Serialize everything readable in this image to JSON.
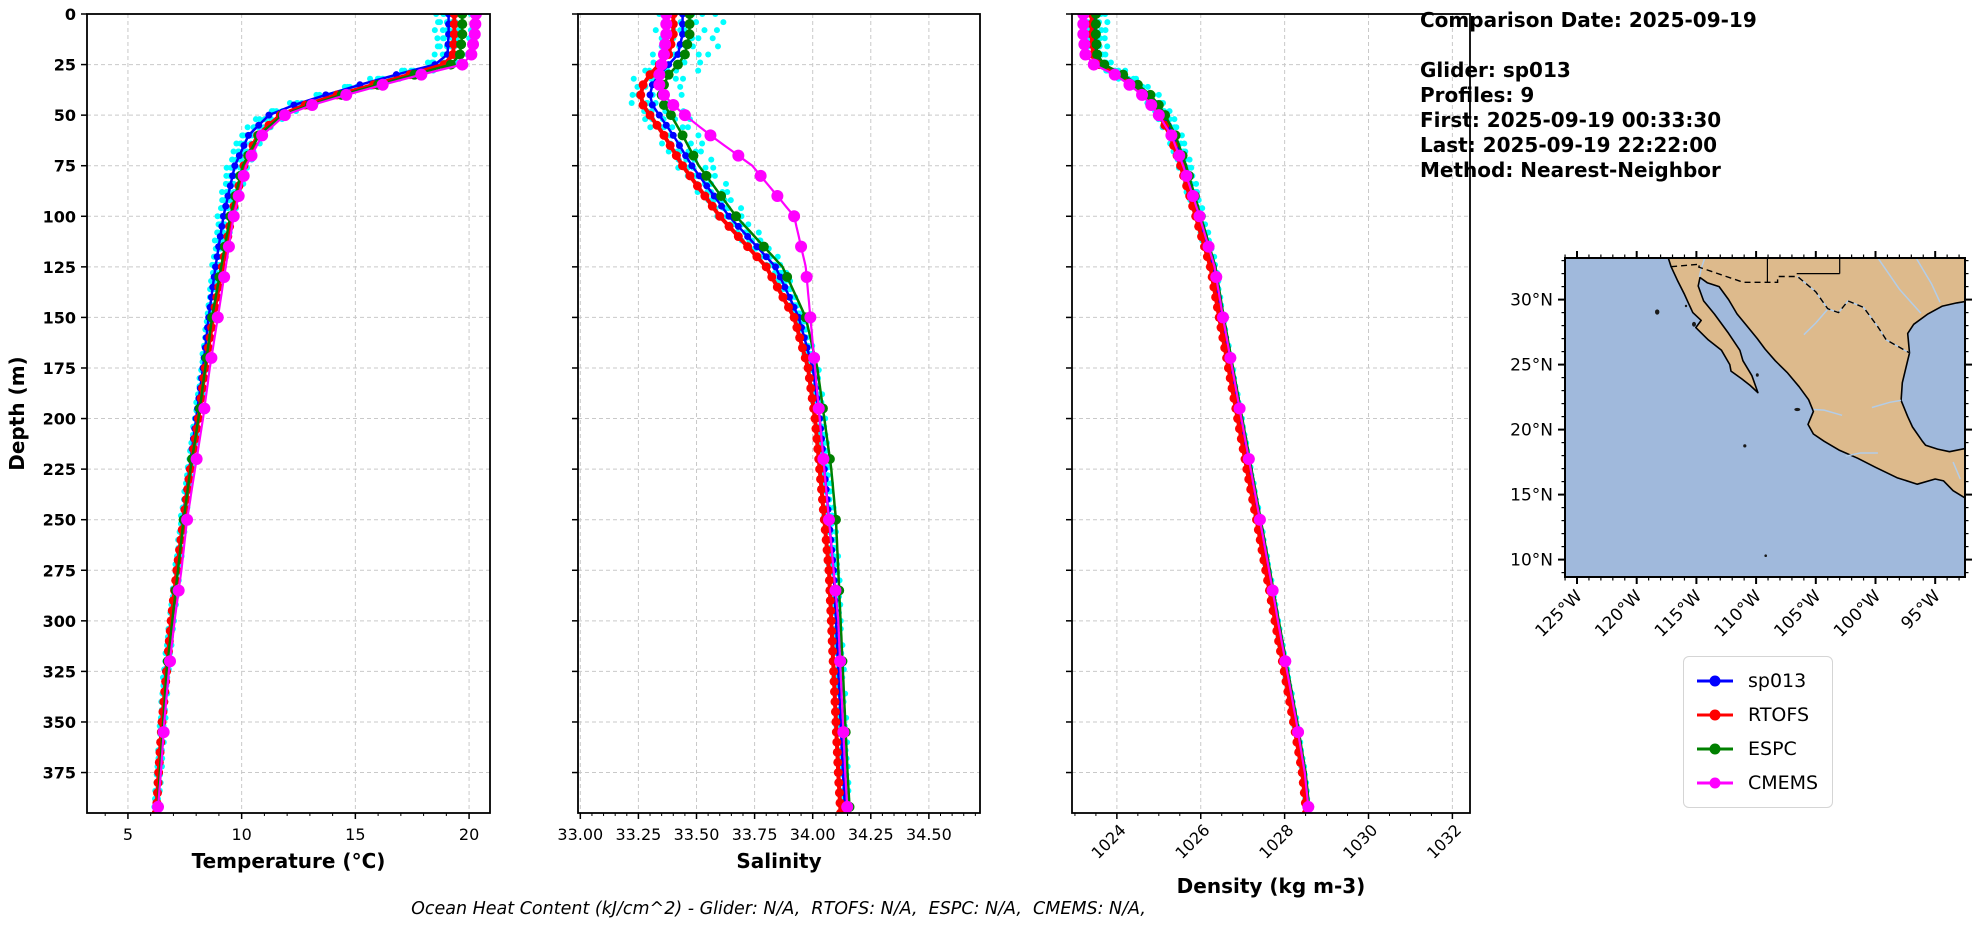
{
  "info_panel": {
    "comparison_date": "Comparison Date: 2025-09-19",
    "glider": "Glider: sp013",
    "profiles": "Profiles: 9",
    "first": "First: 2025-09-19 00:33:30",
    "last": "Last: 2025-09-19 22:22:00",
    "method": "Method: Nearest-Neighbor"
  },
  "footer": {
    "ohc_text": "Ocean Heat Content (kJ/cm^2) - Glider: N/A,  RTOFS: N/A,  ESPC: N/A,  CMEMS: N/A,"
  },
  "legend": {
    "items": [
      {
        "label": "sp013",
        "color": "#0000ff"
      },
      {
        "label": "RTOFS",
        "color": "#ff0000"
      },
      {
        "label": "ESPC",
        "color": "#008000"
      },
      {
        "label": "CMEMS",
        "color": "#ff00ff"
      }
    ]
  },
  "map": {
    "ocean_color": "#a0b9dc",
    "land_color": "#ddba8c",
    "river_color": "#b3cde8",
    "lat_labels": [
      "30°N",
      "25°N",
      "20°N",
      "15°N",
      "10°N"
    ],
    "lat_values": [
      30,
      25,
      20,
      15,
      10
    ],
    "lon_labels": [
      "125°W",
      "120°W",
      "115°W",
      "110°W",
      "105°W",
      "100°W",
      "95°W"
    ],
    "lon_values": [
      -125,
      -120,
      -115,
      -110,
      -105,
      -100,
      -95
    ]
  },
  "chart_data": [
    {
      "type": "line",
      "xlabel": "Temperature (°C)",
      "ylabel": "Depth (m)",
      "xlim": [
        3.2,
        20.92
      ],
      "ylim": [
        0,
        395
      ],
      "xticks": [
        5,
        10,
        15,
        20
      ],
      "xtick_labels": [
        "5",
        "10",
        "15",
        "20"
      ],
      "xminor_step": 1,
      "yticks": [
        0,
        25,
        50,
        75,
        100,
        125,
        150,
        175,
        200,
        225,
        250,
        275,
        300,
        325,
        350,
        375
      ],
      "xtick_rotation": 0,
      "depth_anchors": [
        0,
        10,
        20,
        25,
        30,
        35,
        40,
        45,
        50,
        60,
        75,
        100,
        125,
        150,
        175,
        200,
        225,
        250,
        275,
        300,
        325,
        350,
        375,
        395
      ],
      "series": [
        {
          "name": "sp013",
          "color": "#0000ff",
          "line_width": 2.5,
          "marker_radius": 3.5,
          "marker_step": 5,
          "values": [
            19.1,
            19.1,
            19.05,
            18.5,
            16.8,
            15.2,
            13.7,
            12.3,
            11.2,
            10.3,
            9.7,
            9.2,
            8.85,
            8.55,
            8.3,
            8.0,
            7.7,
            7.4,
            7.15,
            6.9,
            6.65,
            6.5,
            6.35,
            6.2
          ]
        },
        {
          "name": "RTOFS",
          "color": "#ff0000",
          "line_width": 4,
          "marker_radius": 4.5,
          "marker_step": 5,
          "values": [
            19.35,
            19.35,
            19.3,
            18.9,
            17.4,
            15.8,
            14.2,
            12.8,
            11.7,
            10.7,
            10.1,
            9.55,
            9.15,
            8.75,
            8.4,
            8.1,
            7.75,
            7.45,
            7.15,
            6.9,
            6.7,
            6.5,
            6.35,
            6.25
          ]
        },
        {
          "name": "ESPC",
          "color": "#008000",
          "line_width": 2.5,
          "marker_radius": 5,
          "marker_levels": [
            0,
            5,
            10,
            15,
            20,
            25,
            30,
            35,
            40,
            45,
            50,
            60,
            70,
            80,
            90,
            100,
            115,
            130,
            150,
            170,
            195,
            220,
            250,
            285,
            320,
            355,
            392
          ],
          "values": [
            19.7,
            19.7,
            19.6,
            19.2,
            17.6,
            16.0,
            14.4,
            13.0,
            11.8,
            10.75,
            10.05,
            9.5,
            9.1,
            8.7,
            8.4,
            8.1,
            7.75,
            7.45,
            7.2,
            6.95,
            6.7,
            6.55,
            6.4,
            6.3
          ]
        },
        {
          "name": "CMEMS",
          "color": "#ff00ff",
          "line_width": 2.2,
          "marker_radius": 6,
          "marker_levels": [
            0,
            5,
            10,
            15,
            20,
            25,
            30,
            35,
            40,
            45,
            50,
            60,
            70,
            80,
            90,
            100,
            115,
            130,
            150,
            170,
            195,
            220,
            250,
            285,
            320,
            355,
            392
          ],
          "values": [
            20.3,
            20.25,
            20.1,
            19.7,
            17.9,
            16.2,
            14.6,
            13.1,
            11.9,
            10.9,
            10.2,
            9.65,
            9.3,
            8.95,
            8.6,
            8.3,
            7.95,
            7.6,
            7.35,
            7.05,
            6.8,
            6.6,
            6.45,
            6.3
          ]
        }
      ],
      "raw_scatter": {
        "name": "glider-raw-profiles",
        "color": "#00ffff",
        "marker_radius": 3,
        "step": 4,
        "amp": 0.09,
        "offsets": [
          -0.55,
          -0.3,
          -0.12,
          0.12,
          0.4,
          1.05
        ],
        "base": "sp013"
      }
    },
    {
      "type": "line",
      "xlabel": "Salinity",
      "ylabel": "",
      "xlim": [
        32.99,
        34.72
      ],
      "ylim": [
        0,
        395
      ],
      "xticks": [
        33.0,
        33.25,
        33.5,
        33.75,
        34.0,
        34.25,
        34.5
      ],
      "xtick_labels": [
        "33.00",
        "33.25",
        "33.50",
        "33.75",
        "34.00",
        "34.25",
        "34.50"
      ],
      "xminor_step": 0.05,
      "yticks": [
        0,
        25,
        50,
        75,
        100,
        125,
        150,
        175,
        200,
        225,
        250,
        275,
        300,
        325,
        350,
        375
      ],
      "xtick_rotation": 0,
      "depth_anchors": [
        0,
        10,
        20,
        25,
        30,
        35,
        40,
        45,
        50,
        60,
        75,
        100,
        125,
        150,
        175,
        200,
        225,
        250,
        275,
        300,
        325,
        350,
        375,
        395
      ],
      "series": [
        {
          "name": "sp013",
          "color": "#0000ff",
          "line_width": 2.5,
          "marker_radius": 3.5,
          "marker_step": 5,
          "values": [
            33.44,
            33.44,
            33.42,
            33.38,
            33.34,
            33.31,
            33.3,
            33.31,
            33.34,
            33.4,
            33.48,
            33.64,
            33.84,
            33.94,
            34.0,
            34.03,
            34.05,
            34.07,
            34.09,
            34.1,
            34.11,
            34.12,
            34.13,
            34.14
          ]
        },
        {
          "name": "RTOFS",
          "color": "#ff0000",
          "line_width": 4,
          "marker_radius": 4.5,
          "marker_step": 5,
          "values": [
            33.4,
            33.4,
            33.38,
            33.34,
            33.3,
            33.27,
            33.26,
            33.27,
            33.3,
            33.36,
            33.44,
            33.6,
            33.8,
            33.92,
            33.98,
            34.01,
            34.03,
            34.05,
            34.07,
            34.08,
            34.09,
            34.1,
            34.11,
            34.12
          ]
        },
        {
          "name": "ESPC",
          "color": "#008000",
          "line_width": 2.5,
          "marker_radius": 5,
          "marker_levels": [
            0,
            5,
            10,
            15,
            20,
            25,
            30,
            35,
            40,
            45,
            50,
            60,
            70,
            80,
            90,
            100,
            115,
            130,
            150,
            170,
            195,
            220,
            250,
            285,
            320,
            355,
            392
          ],
          "values": [
            33.47,
            33.47,
            33.45,
            33.42,
            33.38,
            33.36,
            33.35,
            33.36,
            33.39,
            33.44,
            33.51,
            33.67,
            33.87,
            33.97,
            34.02,
            34.05,
            34.08,
            34.1,
            34.11,
            34.12,
            34.13,
            34.14,
            34.15,
            34.16
          ]
        },
        {
          "name": "CMEMS",
          "color": "#ff00ff",
          "line_width": 2.2,
          "marker_radius": 6,
          "marker_levels": [
            0,
            5,
            10,
            15,
            20,
            25,
            30,
            35,
            40,
            45,
            50,
            60,
            70,
            80,
            90,
            100,
            115,
            130,
            150,
            170,
            195,
            220,
            250,
            285,
            320,
            355,
            392
          ],
          "values": [
            33.37,
            33.37,
            33.36,
            33.35,
            33.34,
            33.34,
            33.36,
            33.4,
            33.45,
            33.56,
            33.74,
            33.92,
            33.97,
            33.99,
            34.01,
            34.03,
            34.05,
            34.07,
            34.09,
            34.11,
            34.12,
            34.13,
            34.14,
            34.15
          ]
        }
      ],
      "raw_scatter": {
        "name": "glider-raw-profiles",
        "color": "#00ffff",
        "marker_radius": 3,
        "step": 4,
        "amp": 0.022,
        "offsets": [
          -0.1,
          -0.05,
          -0.02,
          0.03,
          0.08,
          0.16
        ],
        "base": "sp013"
      }
    },
    {
      "type": "line",
      "xlabel": "Density (kg m-3)",
      "ylabel": "",
      "xlim": [
        1022.93,
        1032.42
      ],
      "ylim": [
        0,
        395
      ],
      "xticks": [
        1024,
        1026,
        1028,
        1030,
        1032
      ],
      "xtick_labels": [
        "1024",
        "1026",
        "1028",
        "1030",
        "1032"
      ],
      "xminor_step": 0.5,
      "yticks": [
        0,
        25,
        50,
        75,
        100,
        125,
        150,
        175,
        200,
        225,
        250,
        275,
        300,
        325,
        350,
        375
      ],
      "xtick_rotation": -45,
      "depth_anchors": [
        0,
        10,
        20,
        25,
        30,
        35,
        40,
        45,
        50,
        60,
        75,
        100,
        125,
        150,
        175,
        200,
        225,
        250,
        275,
        300,
        325,
        350,
        375,
        395
      ],
      "series": [
        {
          "name": "sp013",
          "color": "#0000ff",
          "line_width": 2.5,
          "marker_radius": 3.5,
          "marker_step": 5,
          "values": [
            1023.45,
            1023.45,
            1023.48,
            1023.65,
            1024.1,
            1024.45,
            1024.75,
            1024.95,
            1025.1,
            1025.35,
            1025.6,
            1025.95,
            1026.3,
            1026.5,
            1026.72,
            1026.94,
            1027.16,
            1027.38,
            1027.6,
            1027.81,
            1028.03,
            1028.25,
            1028.45,
            1028.55
          ]
        },
        {
          "name": "RTOFS",
          "color": "#ff0000",
          "line_width": 4,
          "marker_radius": 4.5,
          "marker_step": 5,
          "values": [
            1023.4,
            1023.4,
            1023.43,
            1023.58,
            1024.0,
            1024.35,
            1024.65,
            1024.85,
            1025.02,
            1025.27,
            1025.52,
            1025.88,
            1026.23,
            1026.44,
            1026.66,
            1026.88,
            1027.1,
            1027.33,
            1027.55,
            1027.77,
            1027.99,
            1028.21,
            1028.42,
            1028.52
          ]
        },
        {
          "name": "ESPC",
          "color": "#008000",
          "line_width": 2.5,
          "marker_radius": 5,
          "marker_levels": [
            0,
            5,
            10,
            15,
            20,
            25,
            30,
            35,
            40,
            45,
            50,
            60,
            70,
            80,
            90,
            100,
            115,
            130,
            150,
            170,
            195,
            220,
            250,
            285,
            320,
            355,
            392
          ],
          "values": [
            1023.5,
            1023.5,
            1023.53,
            1023.7,
            1024.15,
            1024.5,
            1024.8,
            1025.0,
            1025.15,
            1025.4,
            1025.65,
            1026.0,
            1026.35,
            1026.55,
            1026.77,
            1026.99,
            1027.21,
            1027.43,
            1027.65,
            1027.86,
            1028.08,
            1028.3,
            1028.5,
            1028.6
          ]
        },
        {
          "name": "CMEMS",
          "color": "#ff00ff",
          "line_width": 2.2,
          "marker_radius": 6,
          "marker_levels": [
            0,
            5,
            10,
            15,
            20,
            25,
            30,
            35,
            40,
            45,
            50,
            60,
            70,
            80,
            90,
            100,
            115,
            130,
            150,
            170,
            195,
            220,
            250,
            285,
            320,
            355,
            392
          ],
          "values": [
            1023.2,
            1023.2,
            1023.25,
            1023.45,
            1023.95,
            1024.3,
            1024.6,
            1024.82,
            1025.0,
            1025.3,
            1025.58,
            1025.97,
            1026.33,
            1026.53,
            1026.75,
            1026.97,
            1027.19,
            1027.41,
            1027.63,
            1027.84,
            1028.06,
            1028.28,
            1028.48,
            1028.58
          ]
        }
      ],
      "raw_scatter": {
        "name": "glider-raw-profiles",
        "color": "#00ffff",
        "marker_radius": 3,
        "step": 4,
        "amp": 0.035,
        "offsets": [
          -0.22,
          -0.12,
          -0.05,
          0.06,
          0.16,
          0.3
        ],
        "base": "sp013"
      }
    }
  ]
}
